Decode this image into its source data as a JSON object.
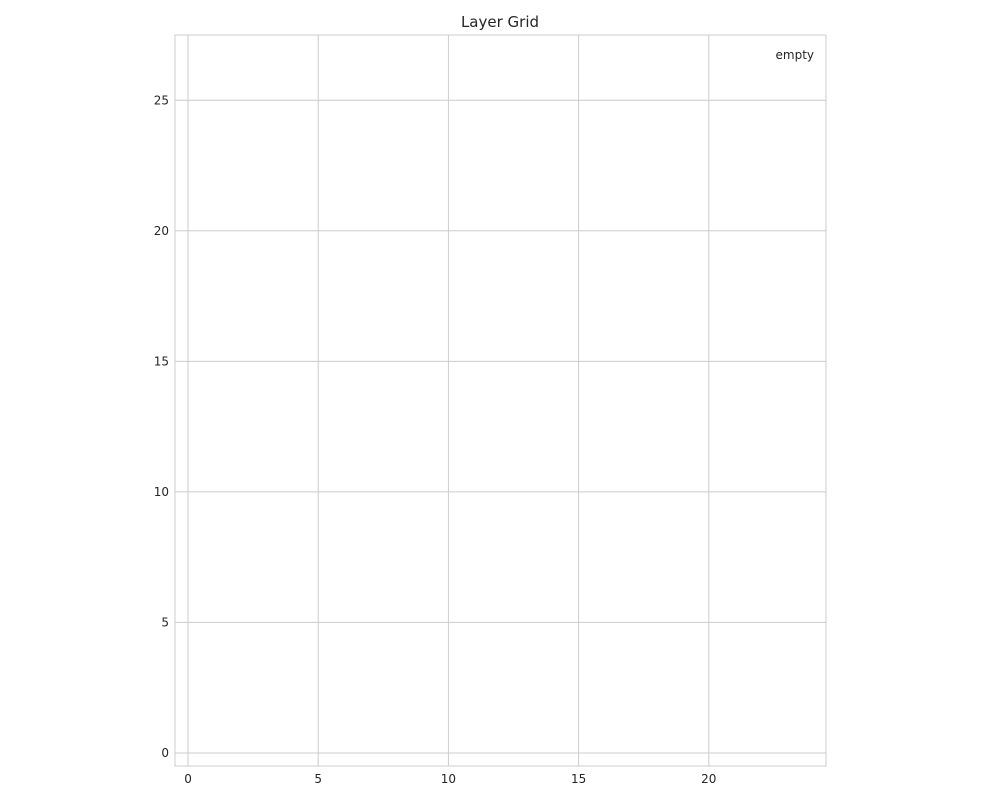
{
  "chart_data": {
    "type": "scatter",
    "title": "Layer Grid",
    "xlabel": "",
    "ylabel": "",
    "xlim": [
      -0.5,
      24.5
    ],
    "ylim": [
      -0.5,
      27.5
    ],
    "x_ticks": [
      0,
      5,
      10,
      15,
      20
    ],
    "y_ticks": [
      0,
      5,
      10,
      15,
      20,
      25
    ],
    "grid": true,
    "series": [
      {
        "name": "empty",
        "x": [],
        "y": []
      }
    ],
    "legend": {
      "placement": "top-right",
      "entries": [
        "empty"
      ]
    },
    "colors": {
      "grid": "#cccccc",
      "spine": "#cccccc",
      "text": "#262626",
      "background": "#ffffff"
    }
  }
}
